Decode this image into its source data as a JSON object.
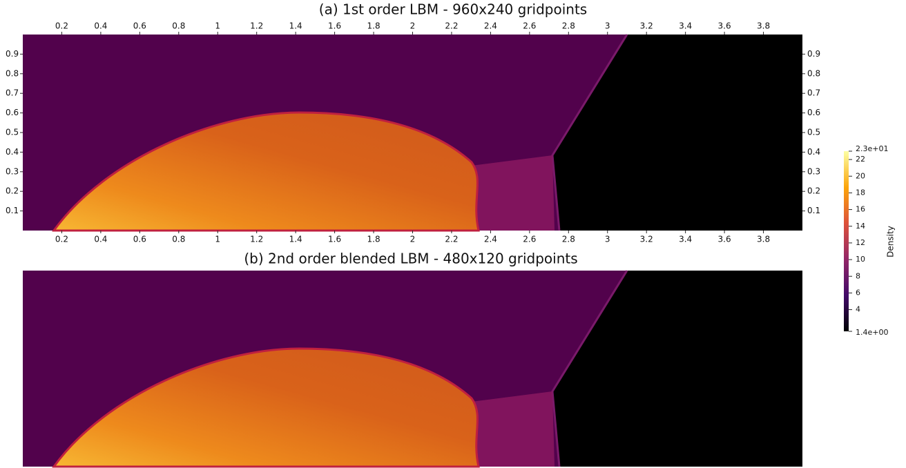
{
  "chart_data": [
    {
      "type": "field",
      "title": "(a) 1st order LBM - 960x240 gridpoints",
      "xlim": [
        0,
        4
      ],
      "ylim": [
        0,
        1
      ],
      "xticks": [
        0.2,
        0.4,
        0.6,
        0.8,
        1,
        1.2,
        1.4,
        1.6,
        1.8,
        2,
        2.2,
        2.4,
        2.6,
        2.8,
        3,
        3.2,
        3.4,
        3.6,
        3.8
      ],
      "yticks": [
        0.1,
        0.2,
        0.3,
        0.4,
        0.5,
        0.6,
        0.7,
        0.8,
        0.9
      ],
      "colorbar": {
        "label": "Density",
        "lim": [
          1.4,
          23
        ],
        "ticks": [
          {
            "value": 1.4,
            "label": "1.4e+00"
          },
          4,
          6,
          8,
          10,
          12,
          14,
          16,
          18,
          20,
          22,
          {
            "value": 23,
            "label": "2.3e+01"
          }
        ]
      }
    },
    {
      "type": "field",
      "title": "(b) 2nd order blended LBM - 480x120 gridpoints"
    }
  ]
}
